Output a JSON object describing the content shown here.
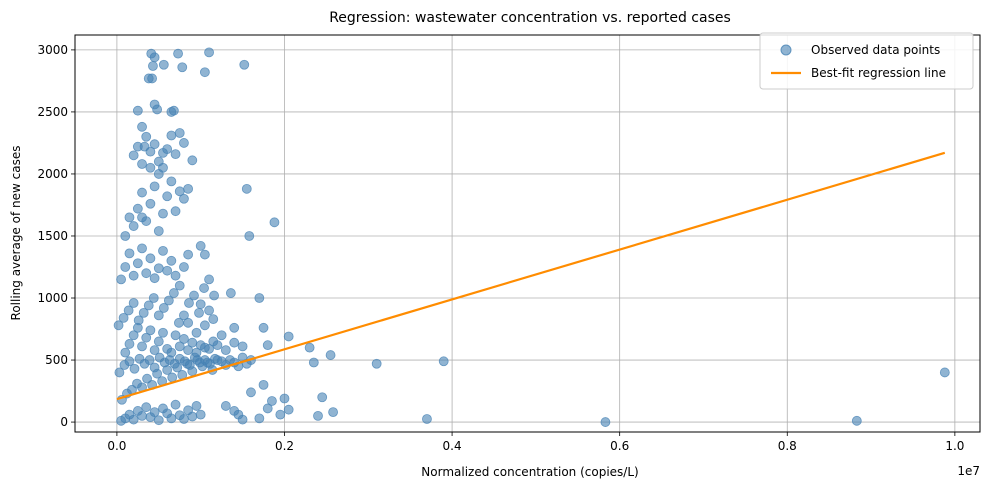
{
  "chart_data": {
    "type": "scatter",
    "title": "Regression: wastewater concentration vs. reported cases",
    "xlabel": "Normalized concentration (copies/L)",
    "ylabel": "Rolling average of new cases",
    "x_offset_label": "1e7",
    "xlim": [
      -500000,
      10300000
    ],
    "ylim": [
      -80,
      3120
    ],
    "x_ticks": [
      0,
      2000000,
      4000000,
      6000000,
      8000000,
      10000000
    ],
    "x_tick_labels": [
      "0.0",
      "0.2",
      "0.4",
      "0.6",
      "0.8",
      "1.0"
    ],
    "y_ticks": [
      0,
      500,
      1000,
      1500,
      2000,
      2500,
      3000
    ],
    "y_tick_labels": [
      "0",
      "500",
      "1000",
      "1500",
      "2000",
      "2500",
      "3000"
    ],
    "grid": true,
    "legend_position": "top-right",
    "colors": {
      "points": "#4682b4",
      "line": "#ff8c00"
    },
    "series": [
      {
        "name": "Observed data points",
        "kind": "scatter",
        "points": [
          [
            50000,
            10
          ],
          [
            100000,
            30
          ],
          [
            150000,
            60
          ],
          [
            200000,
            20
          ],
          [
            250000,
            90
          ],
          [
            300000,
            50
          ],
          [
            350000,
            120
          ],
          [
            400000,
            40
          ],
          [
            450000,
            80
          ],
          [
            500000,
            15
          ],
          [
            550000,
            110
          ],
          [
            600000,
            70
          ],
          [
            650000,
            30
          ],
          [
            700000,
            140
          ],
          [
            750000,
            55
          ],
          [
            800000,
            25
          ],
          [
            850000,
            95
          ],
          [
            900000,
            45
          ],
          [
            950000,
            130
          ],
          [
            1000000,
            60
          ],
          [
            60000,
            180
          ],
          [
            120000,
            230
          ],
          [
            180000,
            260
          ],
          [
            240000,
            310
          ],
          [
            300000,
            280
          ],
          [
            360000,
            350
          ],
          [
            420000,
            300
          ],
          [
            480000,
            390
          ],
          [
            540000,
            330
          ],
          [
            600000,
            420
          ],
          [
            660000,
            360
          ],
          [
            720000,
            440
          ],
          [
            780000,
            380
          ],
          [
            840000,
            470
          ],
          [
            900000,
            410
          ],
          [
            960000,
            500
          ],
          [
            1020000,
            450
          ],
          [
            1080000,
            480
          ],
          [
            1140000,
            420
          ],
          [
            1200000,
            500
          ],
          [
            30000,
            400
          ],
          [
            90000,
            460
          ],
          [
            150000,
            490
          ],
          [
            210000,
            430
          ],
          [
            270000,
            510
          ],
          [
            330000,
            470
          ],
          [
            390000,
            500
          ],
          [
            450000,
            440
          ],
          [
            510000,
            520
          ],
          [
            570000,
            480
          ],
          [
            630000,
            500
          ],
          [
            690000,
            470
          ],
          [
            750000,
            510
          ],
          [
            810000,
            490
          ],
          [
            870000,
            460
          ],
          [
            930000,
            520
          ],
          [
            990000,
            480
          ],
          [
            1050000,
            500
          ],
          [
            1110000,
            470
          ],
          [
            1170000,
            510
          ],
          [
            1250000,
            490
          ],
          [
            1300000,
            460
          ],
          [
            1350000,
            500
          ],
          [
            1400000,
            480
          ],
          [
            1450000,
            450
          ],
          [
            1500000,
            520
          ],
          [
            1550000,
            470
          ],
          [
            1600000,
            500
          ],
          [
            1300000,
            130
          ],
          [
            1450000,
            60
          ],
          [
            1600000,
            240
          ],
          [
            1700000,
            30
          ],
          [
            1800000,
            110
          ],
          [
            1950000,
            60
          ],
          [
            2000000,
            190
          ],
          [
            2050000,
            100
          ],
          [
            1750000,
            300
          ],
          [
            1850000,
            170
          ],
          [
            1500000,
            20
          ],
          [
            1400000,
            90
          ],
          [
            100000,
            560
          ],
          [
            150000,
            630
          ],
          [
            200000,
            700
          ],
          [
            250000,
            760
          ],
          [
            300000,
            610
          ],
          [
            350000,
            680
          ],
          [
            400000,
            740
          ],
          [
            450000,
            580
          ],
          [
            500000,
            650
          ],
          [
            550000,
            720
          ],
          [
            600000,
            590
          ],
          [
            650000,
            560
          ],
          [
            700000,
            700
          ],
          [
            750000,
            610
          ],
          [
            800000,
            670
          ],
          [
            850000,
            580
          ],
          [
            900000,
            640
          ],
          [
            950000,
            560
          ],
          [
            1000000,
            620
          ],
          [
            1050000,
            600
          ],
          [
            1100000,
            590
          ],
          [
            1150000,
            650
          ],
          [
            1200000,
            620
          ],
          [
            1300000,
            580
          ],
          [
            1400000,
            640
          ],
          [
            1500000,
            610
          ],
          [
            1800000,
            620
          ],
          [
            2050000,
            690
          ],
          [
            2300000,
            600
          ],
          [
            2550000,
            540
          ],
          [
            20000,
            780
          ],
          [
            80000,
            840
          ],
          [
            140000,
            900
          ],
          [
            200000,
            960
          ],
          [
            260000,
            820
          ],
          [
            320000,
            880
          ],
          [
            380000,
            940
          ],
          [
            440000,
            1000
          ],
          [
            500000,
            860
          ],
          [
            560000,
            920
          ],
          [
            620000,
            980
          ],
          [
            680000,
            1040
          ],
          [
            740000,
            800
          ],
          [
            800000,
            860
          ],
          [
            860000,
            960
          ],
          [
            920000,
            1020
          ],
          [
            980000,
            880
          ],
          [
            1040000,
            1080
          ],
          [
            1100000,
            900
          ],
          [
            1160000,
            1020
          ],
          [
            1360000,
            1040
          ],
          [
            1700000,
            1000
          ],
          [
            1400000,
            760
          ],
          [
            1750000,
            760
          ],
          [
            1250000,
            700
          ],
          [
            1050000,
            780
          ],
          [
            950000,
            720
          ],
          [
            1150000,
            830
          ],
          [
            850000,
            800
          ],
          [
            1000000,
            950
          ],
          [
            50000,
            1150
          ],
          [
            100000,
            1250
          ],
          [
            150000,
            1360
          ],
          [
            200000,
            1180
          ],
          [
            250000,
            1280
          ],
          [
            300000,
            1400
          ],
          [
            350000,
            1200
          ],
          [
            400000,
            1320
          ],
          [
            450000,
            1160
          ],
          [
            500000,
            1240
          ],
          [
            550000,
            1380
          ],
          [
            600000,
            1220
          ],
          [
            650000,
            1300
          ],
          [
            700000,
            1180
          ],
          [
            750000,
            1100
          ],
          [
            800000,
            1250
          ],
          [
            850000,
            1350
          ],
          [
            1000000,
            1420
          ],
          [
            1050000,
            1350
          ],
          [
            1100000,
            1150
          ],
          [
            100000,
            1500
          ],
          [
            150000,
            1650
          ],
          [
            200000,
            1580
          ],
          [
            250000,
            1720
          ],
          [
            300000,
            1850
          ],
          [
            350000,
            1620
          ],
          [
            400000,
            1760
          ],
          [
            450000,
            1900
          ],
          [
            500000,
            1540
          ],
          [
            550000,
            1680
          ],
          [
            600000,
            1820
          ],
          [
            650000,
            1940
          ],
          [
            700000,
            1700
          ],
          [
            750000,
            1860
          ],
          [
            800000,
            1800
          ],
          [
            850000,
            1880
          ],
          [
            1550000,
            1880
          ],
          [
            1580000,
            1500
          ],
          [
            1880000,
            1610
          ],
          [
            300000,
            1650
          ],
          [
            200000,
            2150
          ],
          [
            250000,
            2220
          ],
          [
            300000,
            2080
          ],
          [
            350000,
            2300
          ],
          [
            400000,
            2180
          ],
          [
            450000,
            2240
          ],
          [
            500000,
            2100
          ],
          [
            550000,
            2050
          ],
          [
            600000,
            2200
          ],
          [
            650000,
            2310
          ],
          [
            700000,
            2160
          ],
          [
            750000,
            2330
          ],
          [
            800000,
            2250
          ],
          [
            900000,
            2110
          ],
          [
            500000,
            2000
          ],
          [
            400000,
            2050
          ],
          [
            300000,
            2380
          ],
          [
            450000,
            2560
          ],
          [
            650000,
            2500
          ],
          [
            250000,
            2510
          ],
          [
            380000,
            2770
          ],
          [
            420000,
            2770
          ],
          [
            430000,
            2870
          ],
          [
            450000,
            2940
          ],
          [
            410000,
            2970
          ],
          [
            560000,
            2880
          ],
          [
            730000,
            2970
          ],
          [
            780000,
            2860
          ],
          [
            1050000,
            2820
          ],
          [
            1100000,
            2980
          ],
          [
            1520000,
            2880
          ],
          [
            480000,
            2520
          ],
          [
            680000,
            2510
          ],
          [
            550000,
            2170
          ],
          [
            330000,
            2220
          ],
          [
            2350000,
            480
          ],
          [
            2580000,
            80
          ],
          [
            2400000,
            50
          ],
          [
            2450000,
            200
          ],
          [
            3100000,
            470
          ],
          [
            3900000,
            490
          ],
          [
            3700000,
            25
          ],
          [
            5830000,
            0
          ],
          [
            8830000,
            10
          ],
          [
            9880000,
            400
          ]
        ]
      },
      {
        "name": "Best-fit regression line",
        "kind": "line",
        "points": [
          [
            0,
            185
          ],
          [
            9880000,
            2170
          ]
        ]
      }
    ]
  }
}
